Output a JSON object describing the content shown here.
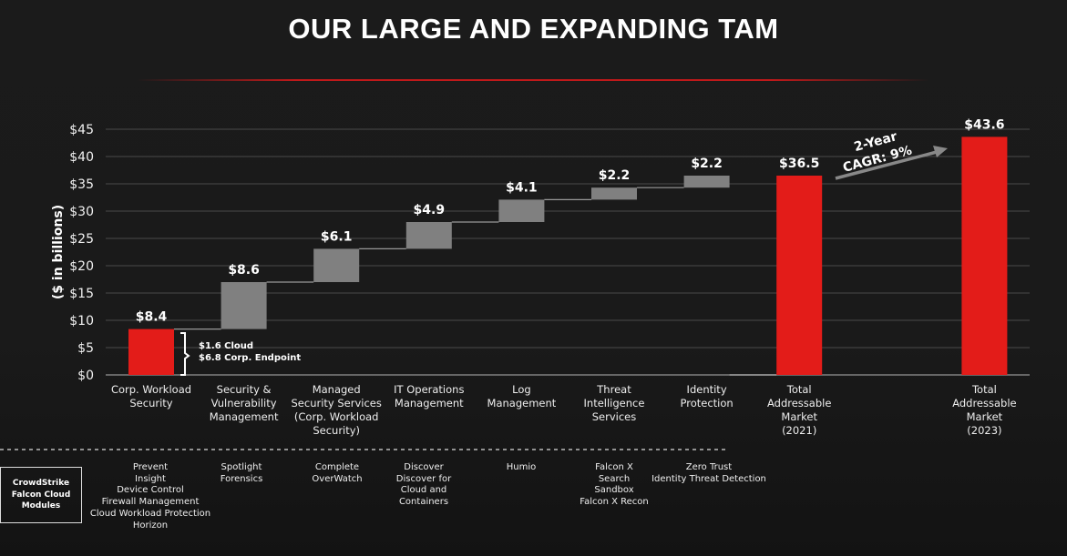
{
  "title": "OUR LARGE AND EXPANDING TAM",
  "chart_data": {
    "type": "waterfall",
    "ylabel": "($ in billions)",
    "ylim": [
      0,
      45
    ],
    "yticks": [
      "$0",
      "$5",
      "$10",
      "$15",
      "$20",
      "$25",
      "$30",
      "$35",
      "$40",
      "$45"
    ],
    "grid": true,
    "categories": [
      "Corp. Workload Security",
      "Security & Vulnerability Management",
      "Managed Security Services (Corp. Workload Security)",
      "IT Operations Management",
      "Log Management",
      "Threat Intelligence Services",
      "Identity Protection",
      "Total Addressable Market (2021)",
      "Total Addressable Market (2023)"
    ],
    "category_lines": [
      [
        "Corp. Workload",
        "Security"
      ],
      [
        "Security &",
        "Vulnerability",
        "Management"
      ],
      [
        "Managed",
        "Security Services",
        "(Corp. Workload",
        "Security)"
      ],
      [
        "IT Operations",
        "Management"
      ],
      [
        "Log",
        "Management"
      ],
      [
        "Threat",
        "Intelligence",
        "Services"
      ],
      [
        "Identity",
        "Protection"
      ],
      [
        "Total",
        "Addressable",
        "Market",
        "(2021)"
      ],
      [
        "Total",
        "Addressable",
        "Market",
        "(2023)"
      ]
    ],
    "values": [
      8.4,
      8.6,
      6.1,
      4.9,
      4.1,
      2.2,
      2.2,
      36.5,
      43.6
    ],
    "data_labels": [
      "$8.4",
      "$8.6",
      "$6.1",
      "$4.9",
      "$4.1",
      "$2.2",
      "$2.2",
      "$36.5",
      "$43.6"
    ],
    "kinds": [
      "total",
      "increment",
      "increment",
      "increment",
      "increment",
      "increment",
      "increment",
      "total",
      "total"
    ],
    "colors": {
      "total": "#e31c19",
      "increment": "#808080"
    },
    "annotations": {
      "breakdown": [
        "$1.6 Cloud",
        "$6.8 Corp. Endpoint"
      ],
      "cagr": [
        "2-Year",
        "CAGR: 9%"
      ]
    }
  },
  "modules": {
    "label": [
      "CrowdStrike",
      "Falcon Cloud",
      "Modules"
    ],
    "columns": [
      [
        "Prevent",
        "Insight",
        "Device Control",
        "Firewall Management",
        "Cloud Workload Protection",
        "Horizon"
      ],
      [
        "Spotlight",
        "Forensics"
      ],
      [
        "Complete",
        "OverWatch"
      ],
      [
        "Discover",
        "Discover for",
        "Cloud and",
        "Containers"
      ],
      [
        "Humio"
      ],
      [
        "Falcon X",
        "Search",
        "Sandbox",
        "Falcon X Recon"
      ],
      [
        "Zero Trust",
        "Identity Threat Detection"
      ]
    ]
  }
}
